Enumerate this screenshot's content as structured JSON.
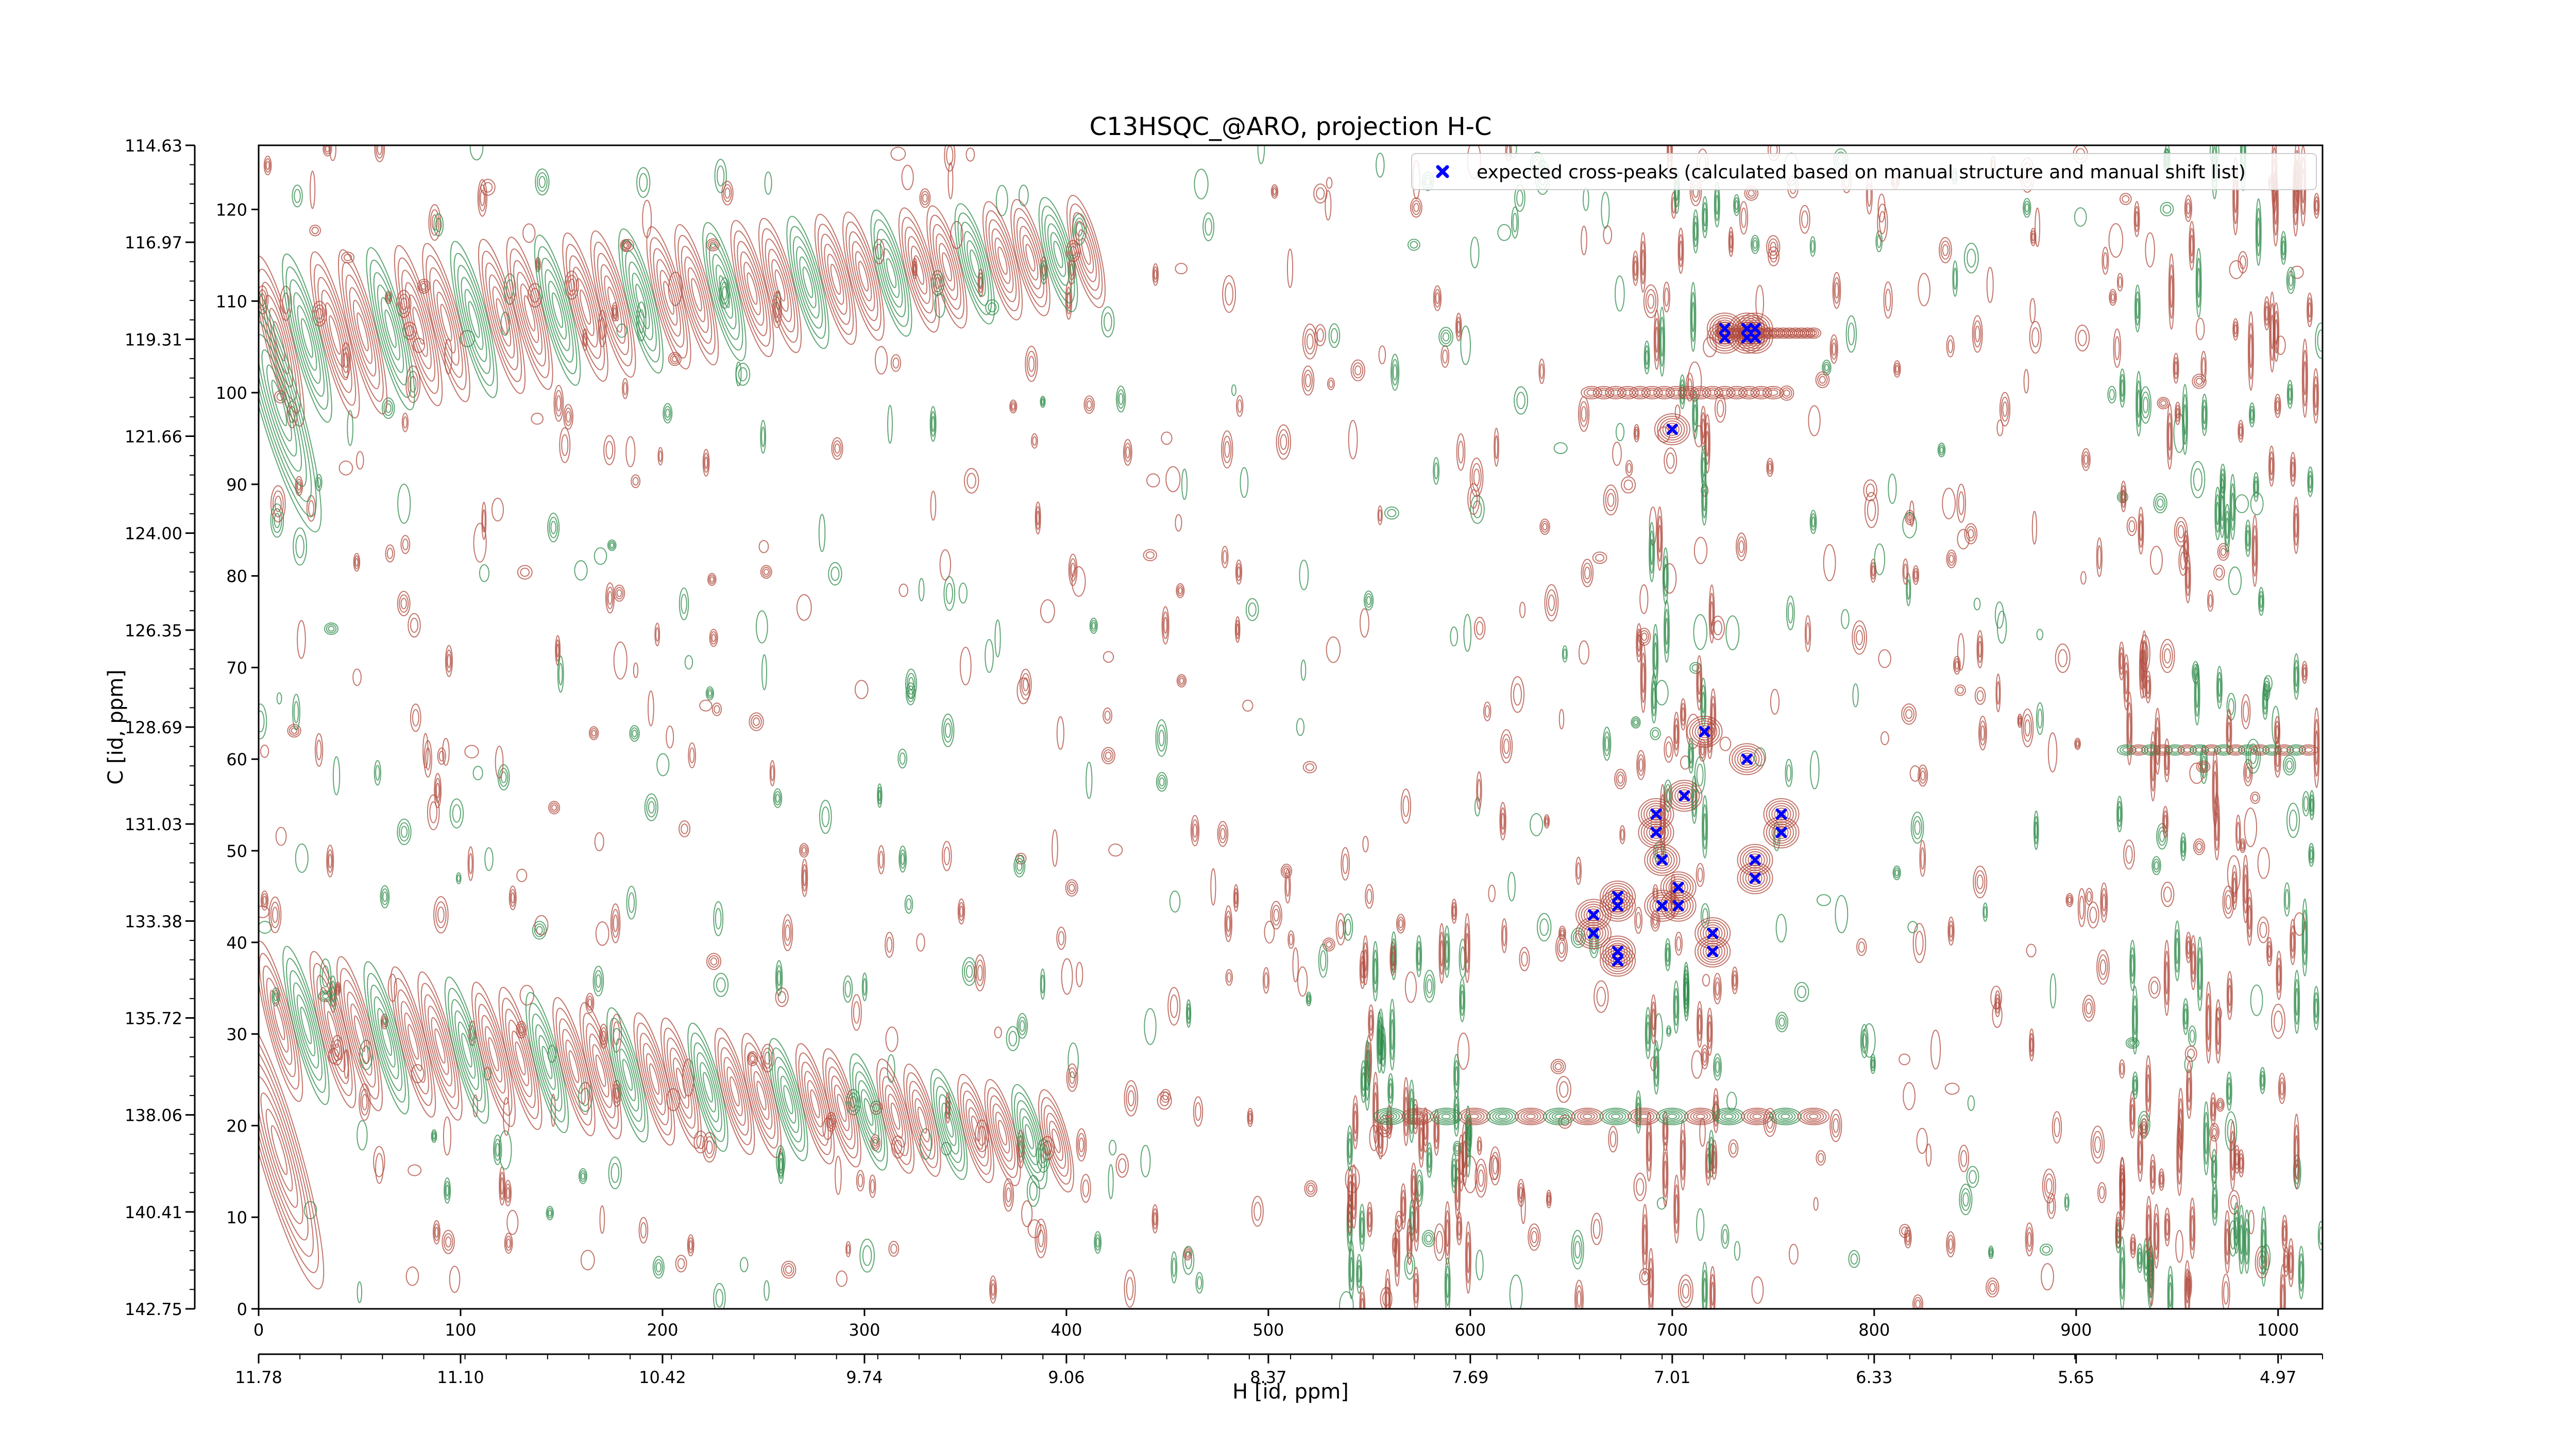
{
  "chart_data": {
    "type": "scatter",
    "title": "C13HSQC_@ARO, projection H-C",
    "xlabel": "H [id, ppm]",
    "ylabel": "C [id, ppm]",
    "xlim": [
      0,
      1022
    ],
    "ylim": [
      0,
      127
    ],
    "x_ticks": [
      0,
      100,
      200,
      300,
      400,
      500,
      600,
      700,
      800,
      900,
      1000
    ],
    "y_ticks": [
      0,
      10,
      20,
      30,
      40,
      50,
      60,
      70,
      80,
      90,
      100,
      110,
      120
    ],
    "ppm_x_ticks": [
      {
        "x": 0,
        "label": "11.78"
      },
      {
        "x": 100,
        "label": "11.10"
      },
      {
        "x": 200,
        "label": "10.42"
      },
      {
        "x": 300,
        "label": "9.74"
      },
      {
        "x": 400,
        "label": "9.06"
      },
      {
        "x": 500,
        "label": "8.37"
      },
      {
        "x": 600,
        "label": "7.69"
      },
      {
        "x": 700,
        "label": "7.01"
      },
      {
        "x": 800,
        "label": "6.33"
      },
      {
        "x": 900,
        "label": "5.65"
      },
      {
        "x": 1000,
        "label": "4.97"
      }
    ],
    "ppm_y_ticks": [
      {
        "y": 0,
        "label": "142.75"
      },
      {
        "y": 10.58,
        "label": "140.41"
      },
      {
        "y": 21.17,
        "label": "138.06"
      },
      {
        "y": 31.75,
        "label": "135.72"
      },
      {
        "y": 42.33,
        "label": "133.38"
      },
      {
        "y": 52.92,
        "label": "131.03"
      },
      {
        "y": 63.5,
        "label": "128.69"
      },
      {
        "y": 74.08,
        "label": "126.35"
      },
      {
        "y": 84.67,
        "label": "124.00"
      },
      {
        "y": 95.25,
        "label": "121.66"
      },
      {
        "y": 105.83,
        "label": "119.31"
      },
      {
        "y": 116.42,
        "label": "116.97"
      },
      {
        "y": 127,
        "label": "114.63"
      }
    ],
    "legend": {
      "position": "top-right",
      "label": "expected cross-peaks (calculated based on manual structure and manual shift list)"
    },
    "series": [
      {
        "name": "expected cross-peaks (calculated based on manual structure and manual shift list)",
        "color": "#0000ff",
        "marker": "x",
        "points": [
          {
            "x": 726,
            "y": 107
          },
          {
            "x": 726,
            "y": 106
          },
          {
            "x": 737,
            "y": 107
          },
          {
            "x": 741,
            "y": 107
          },
          {
            "x": 737,
            "y": 106
          },
          {
            "x": 741,
            "y": 106
          },
          {
            "x": 700,
            "y": 96
          },
          {
            "x": 716,
            "y": 63
          },
          {
            "x": 737,
            "y": 60
          },
          {
            "x": 706,
            "y": 56
          },
          {
            "x": 692,
            "y": 54
          },
          {
            "x": 692,
            "y": 52
          },
          {
            "x": 754,
            "y": 54
          },
          {
            "x": 754,
            "y": 52
          },
          {
            "x": 695,
            "y": 49
          },
          {
            "x": 741,
            "y": 49
          },
          {
            "x": 741,
            "y": 47
          },
          {
            "x": 703,
            "y": 46
          },
          {
            "x": 673,
            "y": 45
          },
          {
            "x": 673,
            "y": 44
          },
          {
            "x": 695,
            "y": 44
          },
          {
            "x": 703,
            "y": 44
          },
          {
            "x": 661,
            "y": 43
          },
          {
            "x": 661,
            "y": 41
          },
          {
            "x": 720,
            "y": 41
          },
          {
            "x": 720,
            "y": 39
          },
          {
            "x": 673,
            "y": 39
          },
          {
            "x": 673,
            "y": 38
          }
        ]
      }
    ],
    "contour_colors": {
      "positive": "#b04a3c",
      "negative": "#2e8b4a"
    },
    "grid": false
  }
}
